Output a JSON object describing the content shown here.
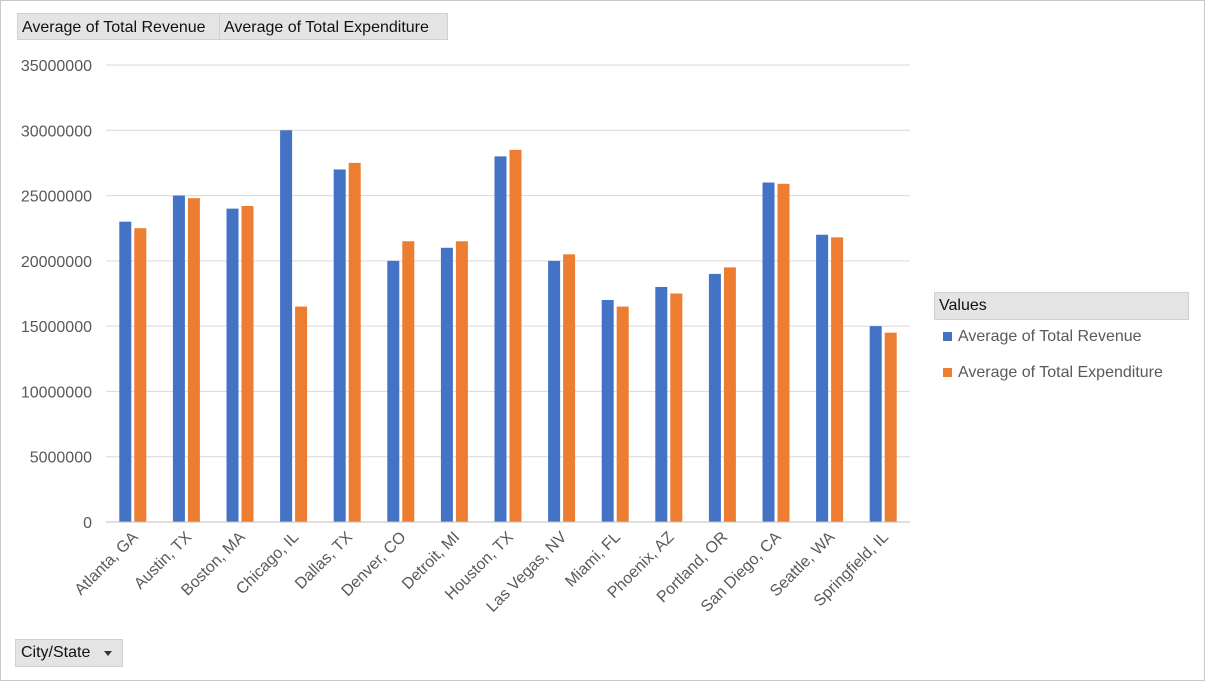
{
  "field_buttons": {
    "revenue": "Average of Total Revenue",
    "expenditure": "Average of Total Expenditure"
  },
  "axis_field": {
    "label": "City/State"
  },
  "legend": {
    "title": "Values",
    "items": [
      "Average of Total Revenue",
      "Average of Total Expenditure"
    ]
  },
  "colors": {
    "revenue": "#4472C4",
    "expenditure": "#ED7D31",
    "grid": "#d9d9d9"
  },
  "chart_data": {
    "type": "bar",
    "categories": [
      "Atlanta, GA",
      "Austin, TX",
      "Boston, MA",
      "Chicago, IL",
      "Dallas, TX",
      "Denver, CO",
      "Detroit, MI",
      "Houston, TX",
      "Las Vegas, NV",
      "Miami, FL",
      "Phoenix, AZ",
      "Portland, OR",
      "San Diego, CA",
      "Seattle, WA",
      "Springfield, IL"
    ],
    "series": [
      {
        "name": "Average of Total Revenue",
        "values": [
          23000000,
          25000000,
          24000000,
          30000000,
          27000000,
          20000000,
          21000000,
          28000000,
          20000000,
          17000000,
          18000000,
          19000000,
          26000000,
          22000000,
          15000000
        ]
      },
      {
        "name": "Average of Total Expenditure",
        "values": [
          22500000,
          24800000,
          24200000,
          16500000,
          27500000,
          21500000,
          21500000,
          28500000,
          20500000,
          16500000,
          17500000,
          19500000,
          25900000,
          21800000,
          14500000
        ]
      }
    ],
    "yticks": [
      0,
      5000000,
      10000000,
      15000000,
      20000000,
      25000000,
      30000000,
      35000000
    ],
    "ylim": [
      0,
      35000000
    ],
    "grid": true,
    "legend_position": "right"
  }
}
